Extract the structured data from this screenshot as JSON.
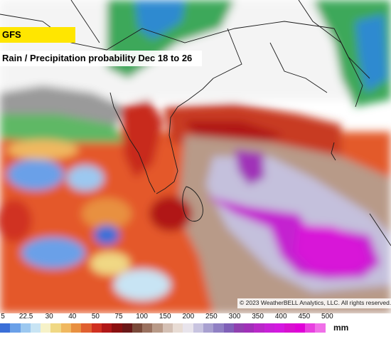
{
  "model_label": "GFS",
  "title": "Rain / Precipitation probability Dec 18 to 26",
  "copyright": "© 2023 WeatherBELL Analytics, LLC. All rights reserved.",
  "legend": {
    "ticks": [
      "5",
      "22.5",
      "30",
      "40",
      "50",
      "75",
      "100",
      "150",
      "200",
      "250",
      "300",
      "350",
      "400",
      "450",
      "500"
    ],
    "unit": "mm",
    "colors": [
      "#3a6fd8",
      "#6aa0e8",
      "#9cc8f0",
      "#c8e4f4",
      "#f6f2c8",
      "#f0d884",
      "#f0b860",
      "#e89040",
      "#e06030",
      "#d03020",
      "#b01818",
      "#8a1010",
      "#6a1818",
      "#7a4a3a",
      "#9a7260",
      "#b89a88",
      "#d4c0b4",
      "#e8dcd4",
      "#e8e4ec",
      "#c8c4e0",
      "#a8a0d0",
      "#9080c4",
      "#8060b8",
      "#9040b0",
      "#a030b8",
      "#b828c8",
      "#c820d8",
      "#d418e0",
      "#d810d0",
      "#e000d8",
      "#e840e0",
      "#f070e8"
    ]
  }
}
